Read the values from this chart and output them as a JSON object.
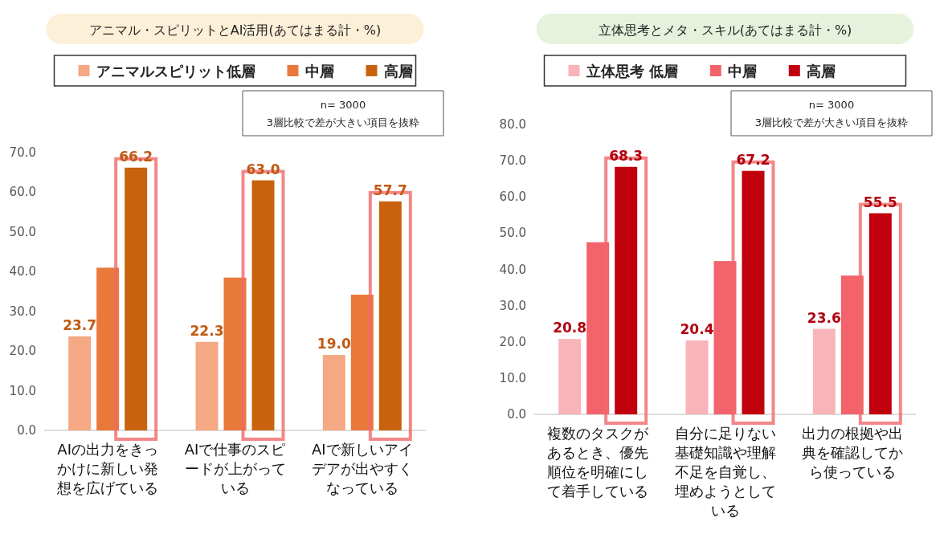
{
  "chart_data": [
    {
      "type": "bar",
      "title": "アニマル・スピリットとAI活用(あてはまる計・%)",
      "categories": [
        "AIの出力をきっかけに新しい発想を広げている",
        "AIで仕事のスピードが上がっている",
        "AIで新しいアイデアが出やすくなっている"
      ],
      "series": [
        {
          "name": "アニマルスピリット低層",
          "color": "#f4a883",
          "values": [
            23.7,
            22.3,
            19.0
          ],
          "value_labels": [
            "23.7",
            "22.3",
            "19.0"
          ]
        },
        {
          "name": "中層",
          "color": "#e9793a",
          "values": [
            41.0,
            38.5,
            34.2
          ]
        },
        {
          "name": "高層",
          "color": "#c8620f",
          "values": [
            66.2,
            63.0,
            57.7
          ],
          "value_labels": [
            "66.2",
            "63.0",
            "57.7"
          ]
        }
      ],
      "ylim": [
        0,
        70
      ],
      "yticks": [
        {
          "value": 0,
          "label": "0.0"
        },
        {
          "value": 10,
          "label": "10.0"
        },
        {
          "value": 20,
          "label": "20.0"
        },
        {
          "value": 30,
          "label": "30.0"
        },
        {
          "value": 40,
          "label": "40.0"
        },
        {
          "value": 50,
          "label": "50.0"
        },
        {
          "value": 60,
          "label": "60.0"
        },
        {
          "value": 70,
          "label": "70.0"
        }
      ],
      "grid": false,
      "legend": "top",
      "annotations": [
        "n= 3000",
        "3層比較で差が大きい項目を抜粋"
      ]
    },
    {
      "type": "bar",
      "title": "立体思考とメタ・スキル(あてはまる計・%)",
      "categories": [
        "複数のタスクがあるとき、優先順位を明確にして着手している",
        "自分に足りない基礎知識や理解不足を自覚し、埋めようとしている",
        "出力の根拠や出典を確認してから使っている"
      ],
      "series": [
        {
          "name": "立体思考 低層",
          "color": "#f8b4b8",
          "values": [
            20.8,
            20.4,
            23.6
          ],
          "value_labels": [
            "20.8",
            "20.4",
            "23.6"
          ]
        },
        {
          "name": "中層",
          "color": "#f2636c",
          "values": [
            47.5,
            42.3,
            38.3
          ]
        },
        {
          "name": "高層",
          "color": "#c00010",
          "values": [
            68.3,
            67.2,
            55.5
          ],
          "value_labels": [
            "68.3",
            "67.2",
            "55.5"
          ]
        }
      ],
      "ylim": [
        0,
        80
      ],
      "yticks": [
        {
          "value": 0,
          "label": "0.0"
        },
        {
          "value": 10,
          "label": "10.0"
        },
        {
          "value": 20,
          "label": "20.0"
        },
        {
          "value": 30,
          "label": "30.0"
        },
        {
          "value": 40,
          "label": "40.0"
        },
        {
          "value": 50,
          "label": "50.0"
        },
        {
          "value": 60,
          "label": "60.0"
        },
        {
          "value": 70,
          "label": "70.0"
        },
        {
          "value": 80,
          "label": "80.0"
        }
      ],
      "grid": false,
      "legend": "top",
      "annotations": [
        "n= 3000",
        "3層比較で差が大きい項目を抜粋"
      ]
    }
  ]
}
